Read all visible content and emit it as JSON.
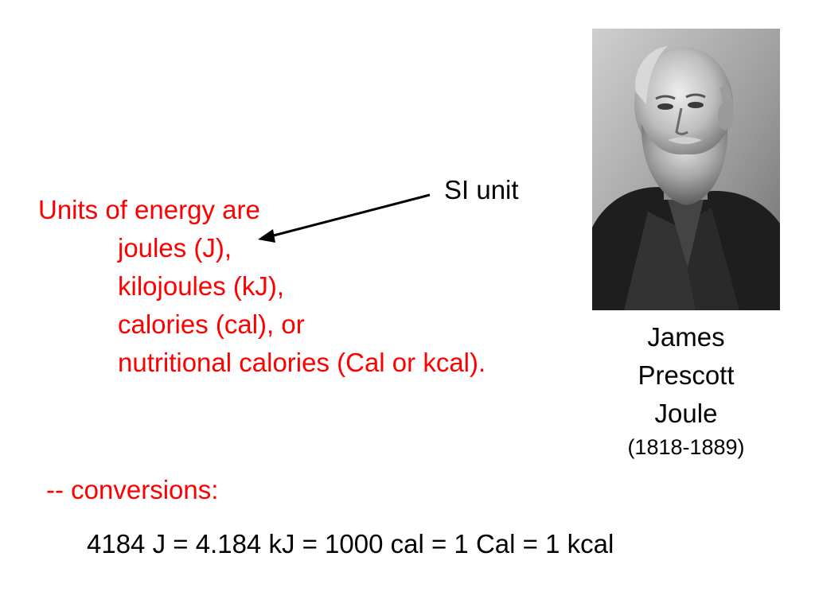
{
  "units": {
    "line1": "Units of energy are",
    "line2": "joules (J),",
    "line3": "kilojoules (kJ),",
    "line4": "calories (cal), or",
    "line5": "nutritional calories (Cal or kcal)."
  },
  "si_label": "SI unit",
  "portrait": {
    "caption_line1": "James",
    "caption_line2": "Prescott",
    "caption_line3": "Joule",
    "dates": "(1818-1889)"
  },
  "conversions_label": "-- conversions:",
  "conversion_equation": "4184 J = 4.184 kJ = 1000 cal = 1 Cal = 1 kcal",
  "colors": {
    "emphasis": "#ff0000",
    "text": "#000000",
    "background": "#ffffff"
  },
  "icons": {
    "pointer": "arrow-left-icon"
  }
}
